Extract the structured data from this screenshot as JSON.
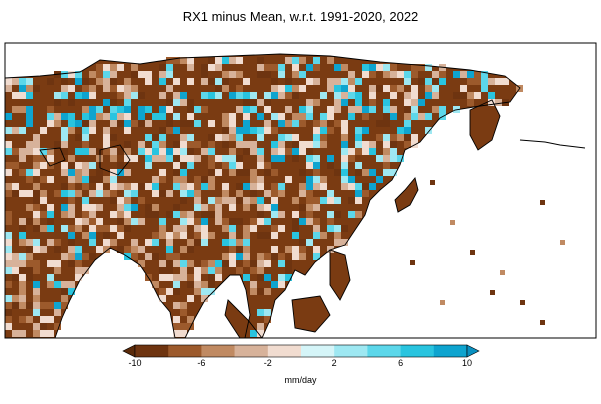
{
  "title": "RX1 minus Mean, w.r.t. 1991-2020, 2022",
  "colorbar": {
    "unit": "mm/day",
    "ticks": [
      "-10",
      "-6",
      "-2",
      "2",
      "6",
      "10"
    ],
    "tick_values": [
      -10,
      -6,
      -2,
      2,
      6,
      10
    ],
    "bins": [
      -10,
      -8,
      -6,
      -4,
      -2,
      0,
      2,
      4,
      6,
      8,
      10
    ],
    "colors": [
      "#6e3410",
      "#9c5a2c",
      "#c08a62",
      "#d7b29a",
      "#f1dcd0",
      "#d5f5f8",
      "#9ee8f2",
      "#5cd7ea",
      "#29c4df",
      "#0ea4cf"
    ],
    "under_color": "#5a2a0a",
    "over_color": "#0a90c0"
  },
  "map": {
    "region": "Asia",
    "land_base_color": "#7a3b12",
    "ocean_color": "#ffffff",
    "coastline_color": "#000000"
  }
}
